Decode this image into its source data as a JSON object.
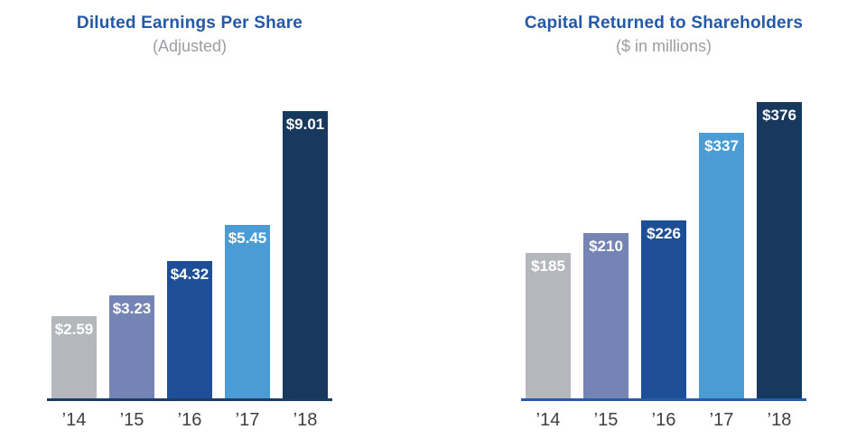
{
  "page": {
    "background": "#ffffff"
  },
  "chart_data": [
    {
      "type": "bar",
      "title": "Diluted Earnings Per Share",
      "subtitle": "(Adjusted)",
      "categories": [
        "’14",
        "’15",
        "’16",
        "’17",
        "’18"
      ],
      "values": [
        2.59,
        3.23,
        4.32,
        5.45,
        9.01
      ],
      "data_labels": [
        "$2.59",
        "$3.23",
        "$4.32",
        "$5.45",
        "$9.01"
      ],
      "xlabel": "",
      "ylabel": "",
      "ylim": [
        0,
        9.01
      ],
      "grid": false,
      "legend": "none",
      "bar_colors": [
        "#b4b7bb",
        "#7485b5",
        "#1e4f96",
        "#4b9bd4",
        "#18395e"
      ],
      "axis_color": "#1e3d66",
      "title_color": "#2458a8",
      "subtitle_color": "#9b9da0",
      "value_label_color": "#ffffff",
      "tick_label_color": "#3e4043"
    },
    {
      "type": "bar",
      "title": "Capital Returned to Shareholders",
      "subtitle": "($ in millions)",
      "categories": [
        "’14",
        "’15",
        "’16",
        "’17",
        "’18"
      ],
      "values": [
        185,
        210,
        226,
        337,
        376
      ],
      "data_labels": [
        "$185",
        "$210",
        "$226",
        "$337",
        "$376"
      ],
      "xlabel": "",
      "ylabel": "",
      "ylim": [
        0,
        376
      ],
      "grid": false,
      "legend": "none",
      "bar_colors": [
        "#b4b7bb",
        "#7485b5",
        "#1e4f96",
        "#4b9bd4",
        "#18395e"
      ],
      "axis_color": "#2a5ca6",
      "title_color": "#2458a8",
      "subtitle_color": "#9b9da0",
      "value_label_color": "#ffffff",
      "tick_label_color": "#3e4043"
    }
  ]
}
